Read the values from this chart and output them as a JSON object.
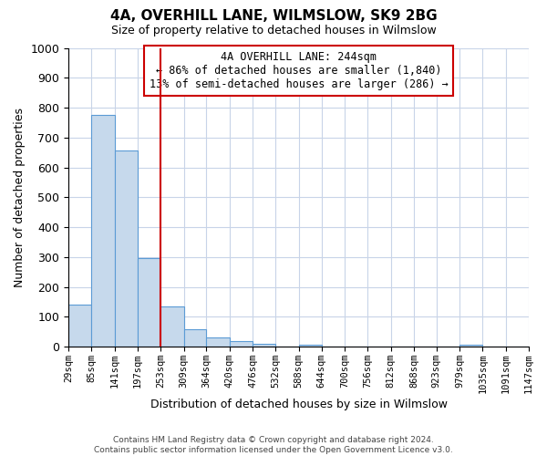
{
  "title": "4A, OVERHILL LANE, WILMSLOW, SK9 2BG",
  "subtitle": "Size of property relative to detached houses in Wilmslow",
  "xlabel": "Distribution of detached houses by size in Wilmslow",
  "ylabel": "Number of detached properties",
  "footer_lines": [
    "Contains HM Land Registry data © Crown copyright and database right 2024.",
    "Contains public sector information licensed under the Open Government Licence v3.0."
  ],
  "bin_edges": [
    29,
    85,
    141,
    197,
    253,
    309,
    364,
    420,
    476,
    532,
    588,
    644,
    700,
    756,
    812,
    868,
    923,
    979,
    1035,
    1091,
    1147
  ],
  "counts": [
    140,
    775,
    657,
    295,
    135,
    57,
    32,
    17,
    8,
    0,
    6,
    0,
    0,
    0,
    0,
    0,
    0,
    6,
    0,
    0
  ],
  "bar_color": "#c6d9ec",
  "bar_edge_color": "#5b9bd5",
  "vline_x": 253,
  "vline_color": "#cc0000",
  "annotation_box_edge_color": "#cc0000",
  "annotation_box_bg": "#ffffff",
  "annotation_lines": [
    "4A OVERHILL LANE: 244sqm",
    "← 86% of detached houses are smaller (1,840)",
    "13% of semi-detached houses are larger (286) →"
  ],
  "annotation_fontsize": 8.5,
  "ylim": [
    0,
    1000
  ],
  "yticks": [
    0,
    100,
    200,
    300,
    400,
    500,
    600,
    700,
    800,
    900,
    1000
  ],
  "background_color": "#ffffff",
  "grid_color": "#c8d4e8",
  "title_fontsize": 11,
  "subtitle_fontsize": 9,
  "ylabel_fontsize": 9,
  "xlabel_fontsize": 9,
  "tick_label_fontsize": 7.5,
  "footer_fontsize": 6.5
}
